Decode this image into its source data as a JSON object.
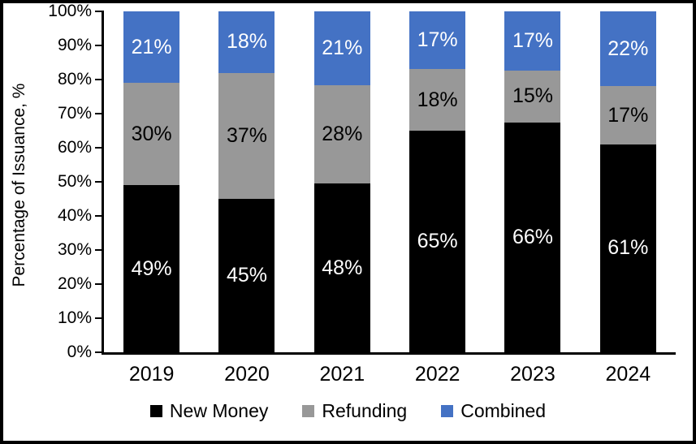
{
  "chart_data": {
    "type": "bar",
    "stacked": true,
    "title": "",
    "xlabel": "",
    "ylabel": "Percentage of Issuance, %",
    "categories": [
      "2019",
      "2020",
      "2021",
      "2022",
      "2023",
      "2024"
    ],
    "series": [
      {
        "name": "New Money",
        "color": "#000000",
        "label_color": "#ffffff",
        "values": [
          49,
          45,
          48,
          65,
          66,
          61
        ]
      },
      {
        "name": "Refunding",
        "color": "#989898",
        "label_color": "#000000",
        "values": [
          30,
          37,
          28,
          18,
          15,
          17
        ]
      },
      {
        "name": "Combined",
        "color": "#4472C4",
        "label_color": "#ffffff",
        "values": [
          21,
          18,
          21,
          17,
          17,
          22
        ]
      }
    ],
    "value_suffix": "%",
    "y_ticks": [
      "0%",
      "10%",
      "20%",
      "30%",
      "40%",
      "50%",
      "60%",
      "70%",
      "80%",
      "90%",
      "100%"
    ],
    "ylim": [
      0,
      100
    ],
    "grid": false,
    "legend_position": "bottom",
    "frame_color": "#000000",
    "background_color": "#ffffff"
  }
}
